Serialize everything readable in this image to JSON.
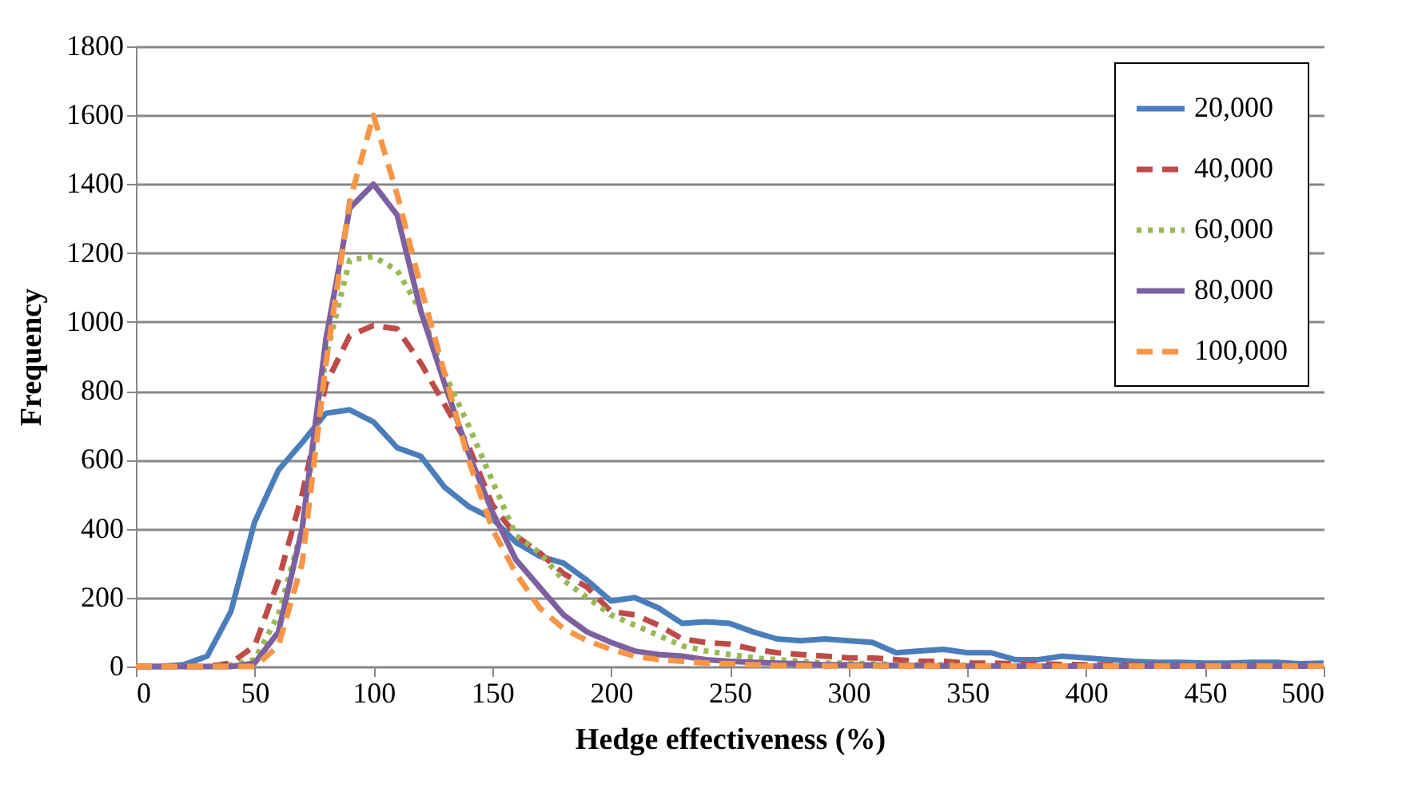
{
  "chart_data": {
    "type": "line",
    "xlabel": "Hedge effectiveness (%)",
    "ylabel": "Frequency",
    "x": [
      0,
      10,
      20,
      30,
      40,
      50,
      60,
      70,
      80,
      90,
      100,
      110,
      120,
      130,
      140,
      150,
      160,
      170,
      180,
      190,
      200,
      210,
      220,
      230,
      240,
      250,
      260,
      270,
      280,
      290,
      300,
      310,
      320,
      330,
      340,
      350,
      360,
      370,
      380,
      390,
      400,
      410,
      420,
      430,
      440,
      450,
      460,
      470,
      480,
      490,
      500
    ],
    "series": [
      {
        "name": "20,000",
        "color": "#4a7ebb",
        "line_style": "solid",
        "values": [
          0,
          0,
          5,
          30,
          160,
          420,
          570,
          650,
          735,
          745,
          710,
          635,
          610,
          520,
          465,
          430,
          360,
          320,
          300,
          250,
          190,
          200,
          170,
          125,
          130,
          125,
          100,
          80,
          75,
          80,
          75,
          70,
          40,
          45,
          50,
          40,
          40,
          20,
          20,
          30,
          25,
          20,
          15,
          12,
          12,
          10,
          10,
          12,
          12,
          8,
          10
        ]
      },
      {
        "name": "40,000",
        "color": "#be4b48",
        "line_style": "dashed",
        "values": [
          0,
          0,
          0,
          0,
          10,
          60,
          250,
          500,
          820,
          960,
          990,
          980,
          880,
          760,
          640,
          470,
          380,
          330,
          270,
          230,
          160,
          150,
          120,
          80,
          70,
          65,
          50,
          40,
          35,
          30,
          25,
          25,
          20,
          15,
          15,
          10,
          10,
          8,
          8,
          6,
          5,
          5,
          5,
          4,
          4,
          3,
          3,
          3,
          3,
          3,
          3
        ]
      },
      {
        "name": "60,000",
        "color": "#98b954",
        "line_style": "dotted",
        "values": [
          null,
          null,
          0,
          0,
          5,
          20,
          150,
          400,
          900,
          1180,
          1190,
          1150,
          1030,
          850,
          700,
          540,
          380,
          330,
          250,
          200,
          150,
          120,
          90,
          60,
          45,
          35,
          25,
          20,
          15,
          10,
          10,
          8,
          6,
          5,
          5,
          4,
          null,
          null,
          null,
          null,
          null,
          null,
          null,
          null,
          null,
          null,
          null,
          null,
          null,
          null,
          null
        ]
      },
      {
        "name": "80,000",
        "color": "#7d60a0",
        "line_style": "solid",
        "values": [
          0,
          0,
          0,
          0,
          0,
          10,
          100,
          400,
          950,
          1330,
          1400,
          1310,
          1030,
          820,
          620,
          450,
          310,
          230,
          150,
          100,
          70,
          45,
          35,
          30,
          20,
          15,
          12,
          10,
          8,
          5,
          5,
          4,
          3,
          3,
          2,
          2,
          2,
          1,
          1,
          1,
          1,
          1,
          1,
          1,
          1,
          1,
          1,
          1,
          1,
          1,
          1
        ]
      },
      {
        "name": "100,000",
        "color": "#f79646",
        "line_style": "dashed",
        "values": [
          0,
          0,
          0,
          0,
          0,
          0,
          60,
          300,
          880,
          1350,
          1600,
          1370,
          1100,
          850,
          600,
          400,
          270,
          170,
          110,
          75,
          50,
          30,
          20,
          15,
          10,
          8,
          5,
          3,
          3,
          2,
          2,
          2,
          1,
          1,
          1,
          1,
          1,
          1,
          1,
          1,
          1,
          1,
          1,
          1,
          1,
          1,
          1,
          1,
          1,
          1,
          1
        ]
      }
    ],
    "xlim": [
      0,
      500
    ],
    "xticks": [
      0,
      50,
      100,
      150,
      200,
      250,
      300,
      350,
      400,
      450,
      500
    ],
    "ylim": [
      0,
      1800
    ],
    "yticks": [
      0,
      200,
      400,
      600,
      800,
      1000,
      1200,
      1400,
      1600,
      1800
    ],
    "grid": "y",
    "legend": "top right",
    "marker": "none"
  }
}
